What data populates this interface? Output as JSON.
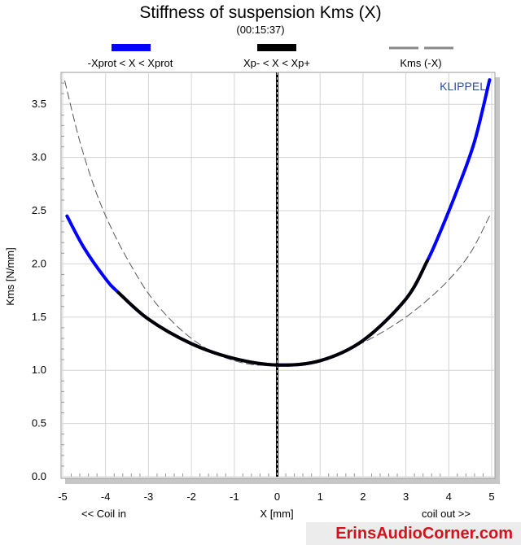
{
  "chart_data": {
    "type": "line",
    "title": "Stiffness of suspension Kms (X)",
    "subtitle": "(00:15:37)",
    "xlabel": "X [mm]",
    "ylabel": "Kms [N/mm]",
    "x_left_note": "<< Coil in",
    "x_right_note": "coil out >>",
    "watermark": "KLIPPEL",
    "xlim": [
      -5,
      5
    ],
    "ylim": [
      0,
      3.75
    ],
    "x_ticks": [
      "-5",
      "-4",
      "-3",
      "-2",
      "-1",
      "0",
      "1",
      "2",
      "3",
      "4",
      "5"
    ],
    "y_ticks": [
      "0.0",
      "0.5",
      "1.0",
      "1.5",
      "2.0",
      "2.5",
      "3.0",
      "3.5"
    ],
    "grid": true,
    "legend_position": "top",
    "series": [
      {
        "name": "-Xprot < X < Xprot",
        "color": "#0000ff",
        "style": "solid-thick",
        "x": [
          -4.9,
          -4.5,
          -4.0,
          -3.7,
          -3.0,
          -2.0,
          -1.0,
          0.0,
          1.0,
          2.0,
          3.0,
          3.5,
          3.8,
          4.2,
          4.6,
          4.95
        ],
        "y": [
          2.45,
          2.15,
          1.86,
          1.73,
          1.48,
          1.25,
          1.11,
          1.05,
          1.09,
          1.28,
          1.67,
          2.03,
          2.3,
          2.7,
          3.15,
          3.73
        ]
      },
      {
        "name": "Xp- < X < Xp+",
        "color": "#000000",
        "style": "solid-thick",
        "x": [
          -3.7,
          -3.0,
          -2.0,
          -1.0,
          0.0,
          1.0,
          2.0,
          3.0,
          3.5
        ],
        "y": [
          1.73,
          1.48,
          1.25,
          1.11,
          1.05,
          1.09,
          1.28,
          1.67,
          2.03
        ]
      },
      {
        "name": "Kms (-X)",
        "color": "#555555",
        "style": "dashed",
        "x": [
          -4.95,
          -4.6,
          -4.2,
          -3.8,
          -3.4,
          -3.0,
          -2.5,
          -2.0,
          -1.5,
          -1.0,
          -0.5,
          0.0,
          0.5,
          1.0,
          1.5,
          2.0,
          2.5,
          3.0,
          3.5,
          4.0,
          4.5,
          4.95
        ],
        "y": [
          3.72,
          3.15,
          2.65,
          2.28,
          1.98,
          1.72,
          1.48,
          1.3,
          1.17,
          1.09,
          1.05,
          1.05,
          1.06,
          1.1,
          1.17,
          1.26,
          1.37,
          1.5,
          1.66,
          1.85,
          2.1,
          2.45
        ]
      }
    ],
    "center_marker": {
      "x": 0,
      "label": ""
    }
  },
  "footer": {
    "credit": "ErinsAudioCorner.com"
  }
}
